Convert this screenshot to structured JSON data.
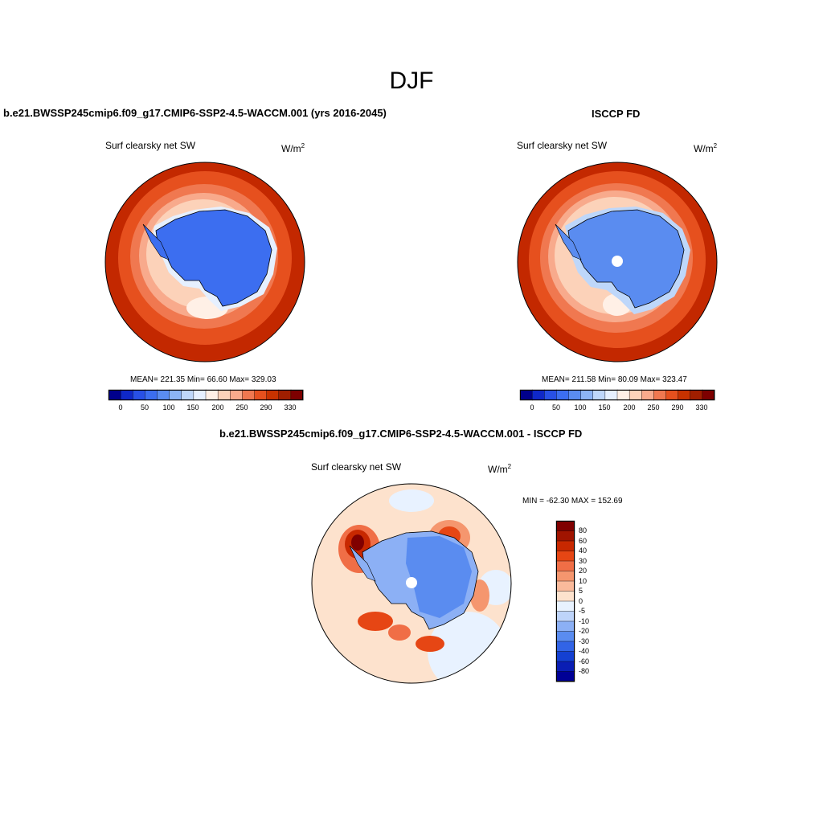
{
  "figure": {
    "title": "DJF"
  },
  "left_panel": {
    "title": "b.e21.BWSSP245cmip6.f09_g17.CMIP6-SSP2-4.5-WACCM.001 (yrs 2016-2045)",
    "subtitle": "Surf clearsky net SW",
    "units": "W/m",
    "units_exp": "2",
    "stats": "MEAN= 221.35  Min=  66.60  Max= 329.03",
    "colorbar_labels": [
      "0",
      "50",
      "100",
      "150",
      "200",
      "250",
      "290",
      "330"
    ]
  },
  "right_panel": {
    "title": "ISCCP FD",
    "subtitle": "Surf clearsky net SW",
    "units": "W/m",
    "units_exp": "2",
    "stats": "MEAN= 211.58  Min=  80.09  Max= 323.47",
    "colorbar_labels": [
      "0",
      "50",
      "100",
      "150",
      "200",
      "250",
      "290",
      "330"
    ]
  },
  "diff_panel": {
    "title": "b.e21.BWSSP245cmip6.f09_g17.CMIP6-SSP2-4.5-WACCM.001 - ISCCP FD",
    "subtitle": "Surf clearsky net SW",
    "units": "W/m",
    "units_exp": "2",
    "stats": "MIN = -62.30 MAX = 152.69",
    "colorbar_labels": [
      "80",
      "60",
      "40",
      "30",
      "20",
      "10",
      "5",
      "0",
      "-5",
      "-10",
      "-20",
      "-30",
      "-40",
      "-60",
      "-80"
    ]
  },
  "palette": {
    "abs_colors": [
      "#00008c",
      "#0f28c8",
      "#2850e6",
      "#3c6ef0",
      "#5a8cf0",
      "#8cb4f5",
      "#bed7fa",
      "#e6f0ff",
      "#fff0e6",
      "#fcd2b9",
      "#f8aa8c",
      "#f07850",
      "#e6501e",
      "#c83200",
      "#a01e00",
      "#7d0000"
    ],
    "diff_colors": [
      "#800000",
      "#a01400",
      "#c82800",
      "#e64614",
      "#f06e46",
      "#f5966e",
      "#faba9b",
      "#fde2cd",
      "#e8f2ff",
      "#bed4fa",
      "#8cb0f5",
      "#5a8cf0",
      "#3264e6",
      "#1440d2",
      "#0a1eb4",
      "#000096"
    ],
    "continent": "#3c6ef0",
    "ocean_far": "#c32800",
    "ocean_diff": "#fde2cd"
  }
}
